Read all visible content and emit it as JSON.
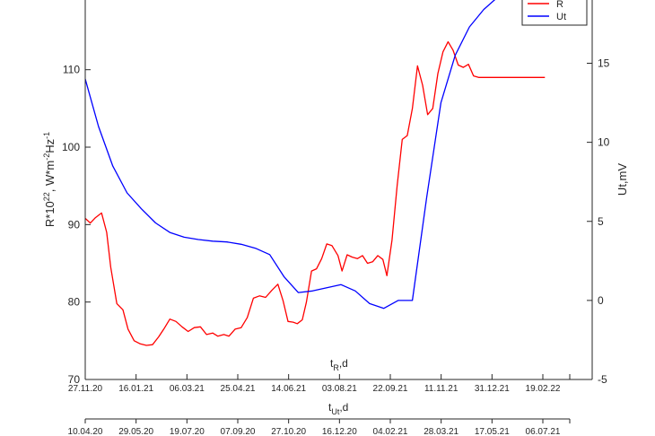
{
  "chart_data": {
    "type": "line",
    "left_axis": {
      "label_main": "R*10",
      "label_sup1": "22",
      "label_mid": ", W*m",
      "label_sup2": "-2",
      "label_mid2": "Hz",
      "label_sup3": "-1",
      "ylim": [
        70,
        119
      ],
      "ticks": [
        70,
        80,
        90,
        100,
        110
      ]
    },
    "right_axis": {
      "label": "Ut,mV",
      "ylim": [
        -5,
        19
      ],
      "ticks": [
        -5,
        0,
        5,
        10,
        15
      ]
    },
    "x_axis_R": {
      "label_main": "t",
      "label_sub": "R",
      "label_suffix": ",d",
      "tick_labels": [
        "27.11.20",
        "16.01.21",
        "06.03.21",
        "25.04.21",
        "14.06.21",
        "03.08.21",
        "22.09.21",
        "11.11.21",
        "31.12.21",
        "19.02.22"
      ]
    },
    "x_axis_Ut": {
      "label_main": "t",
      "label_sub": "Ut",
      "label_suffix": ",d",
      "tick_labels": [
        "10.04.20",
        "29.05.20",
        "19.07.20",
        "07.09.20",
        "27.10.20",
        "16.12.20",
        "04.02.21",
        "28.03.21",
        "17.05.21",
        "06.07.21"
      ]
    },
    "legend": {
      "position": "top-right",
      "entries": [
        "R",
        "Ut"
      ]
    },
    "series": [
      {
        "name": "R",
        "color": "#ff0000",
        "axis": "left",
        "x": [
          "27.11.20",
          "02.12.20",
          "07.12.20",
          "13.12.20",
          "18.12.20",
          "22.12.20",
          "28.12.20",
          "03.01.21",
          "08.01.21",
          "14.01.21",
          "20.01.21",
          "26.01.21",
          "01.02.21",
          "07.02.21",
          "12.02.21",
          "18.02.21",
          "24.02.21",
          "02.03.21",
          "08.03.21",
          "14.03.21",
          "20.03.21",
          "26.03.21",
          "01.04.21",
          "06.04.21",
          "12.04.21",
          "17.04.21",
          "23.04.21",
          "29.04.21",
          "05.05.21",
          "11.05.21",
          "17.05.21",
          "23.05.21",
          "29.05.21",
          "04.06.21",
          "09.06.21",
          "14.06.21",
          "19.06.21",
          "23.06.21",
          "28.06.21",
          "02.07.21",
          "07.07.21",
          "12.07.21",
          "17.07.21",
          "22.07.21",
          "27.07.21",
          "02.08.21",
          "06.08.21",
          "11.08.21",
          "16.08.21",
          "21.08.21",
          "26.08.21",
          "31.08.21",
          "05.09.21",
          "10.09.21",
          "15.09.21",
          "19.09.21",
          "24.09.21",
          "29.09.21",
          "04.10.21",
          "09.10.21",
          "14.10.21",
          "19.10.21",
          "24.10.21",
          "29.10.21",
          "03.11.21",
          "08.11.21",
          "13.11.21",
          "18.11.21",
          "23.11.21",
          "28.11.21",
          "03.12.21",
          "08.12.21",
          "13.12.21",
          "18.12.21",
          "23.12.21",
          "28.12.21",
          "02.01.22",
          "07.01.22",
          "12.01.22",
          "17.01.22",
          "22.01.22",
          "27.01.22",
          "01.02.22",
          "06.02.22",
          "11.02.22",
          "16.02.22",
          "21.02.22"
        ],
        "y": [
          90.8,
          90.2,
          90.9,
          91.5,
          89.0,
          84.5,
          79.8,
          79.0,
          76.5,
          75.0,
          74.6,
          74.4,
          74.5,
          75.5,
          76.5,
          77.8,
          77.5,
          76.8,
          76.2,
          76.7,
          76.8,
          75.8,
          76.0,
          75.6,
          75.8,
          75.6,
          76.5,
          76.7,
          78.0,
          80.5,
          80.8,
          80.6,
          81.5,
          82.3,
          80.2,
          77.5,
          77.4,
          77.2,
          77.7,
          80.0,
          84.0,
          84.3,
          85.6,
          87.5,
          87.3,
          86.0,
          84.0,
          86.1,
          85.8,
          85.6,
          86.0,
          85.0,
          85.2,
          86.0,
          85.5,
          83.4,
          88.0,
          95.0,
          101.0,
          101.5,
          105.0,
          110.5,
          108.0,
          104.2,
          105.0,
          109.5,
          112.3,
          113.6,
          112.5,
          110.6,
          110.3,
          110.7,
          109.2,
          109.0,
          109.0,
          109.0,
          109.0,
          109.0,
          109.0,
          109.0,
          109.0,
          109.0,
          109.0,
          109.0,
          109.0,
          109.0,
          109.0
        ]
      },
      {
        "name": "Ut",
        "color": "#0000ff",
        "axis": "right",
        "x": [
          "27.11.20",
          "10.12.20",
          "24.12.20",
          "07.01.21",
          "21.01.21",
          "04.02.21",
          "18.02.21",
          "04.03.21",
          "18.03.21",
          "01.04.21",
          "15.04.21",
          "29.04.21",
          "13.05.21",
          "27.05.21",
          "10.06.21",
          "24.06.21",
          "08.07.21",
          "22.07.21",
          "05.08.21",
          "19.08.21",
          "02.09.21",
          "16.09.21",
          "30.09.21",
          "14.10.21",
          "28.10.21",
          "11.11.21",
          "25.11.21",
          "09.12.21",
          "23.12.21",
          "06.01.22",
          "20.01.22",
          "03.02.22"
        ],
        "y": [
          14.0,
          11.0,
          8.5,
          6.8,
          5.8,
          4.9,
          4.3,
          4.0,
          3.85,
          3.75,
          3.7,
          3.55,
          3.3,
          2.9,
          1.5,
          0.5,
          0.6,
          0.8,
          1.0,
          0.6,
          -0.2,
          -0.5,
          0.0,
          0.0,
          6.5,
          12.5,
          15.5,
          17.3,
          18.4,
          19.2,
          19.5,
          19.6
        ]
      }
    ],
    "grid": false
  }
}
